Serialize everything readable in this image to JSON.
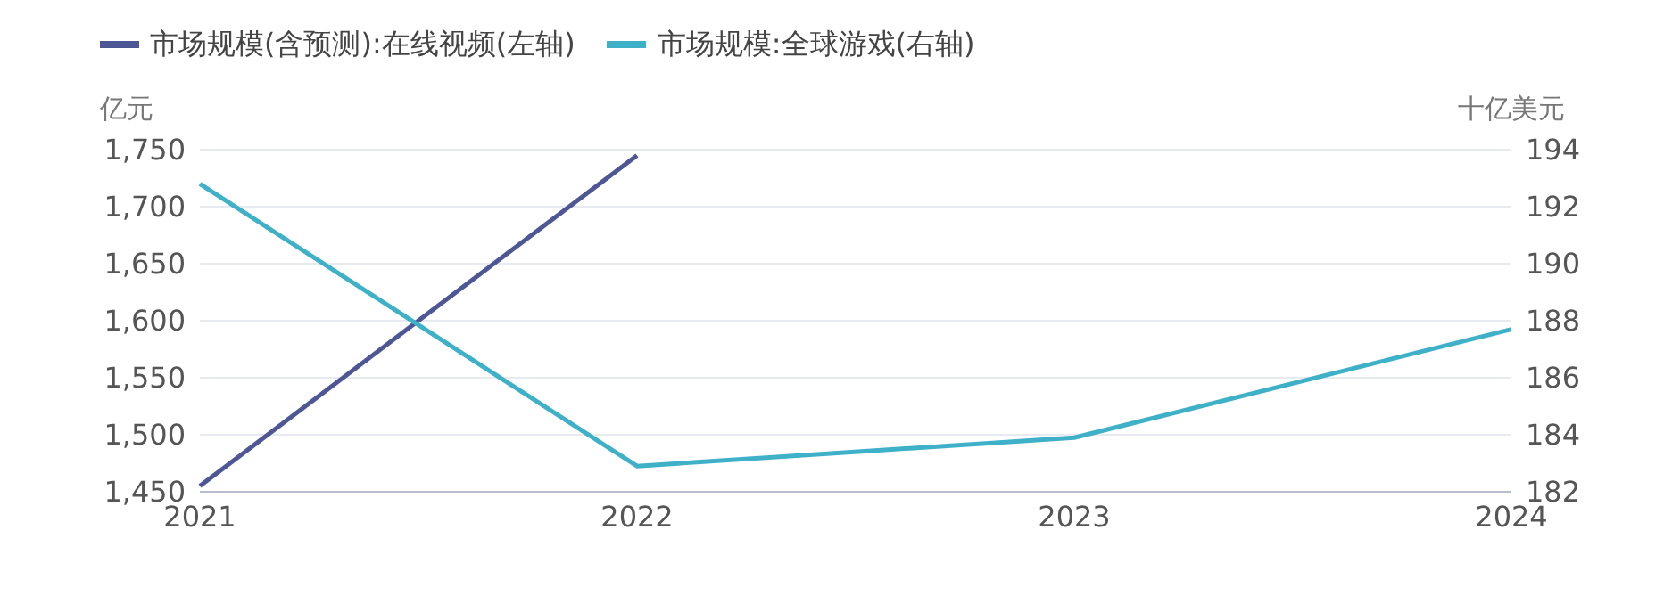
{
  "chart_data": {
    "type": "line",
    "categories": [
      "2021",
      "2022",
      "2023",
      "2024"
    ],
    "series": [
      {
        "name": "市场规模(含预测):在线视频(左轴)",
        "color": "#4e5796",
        "values": [
          1455,
          1745,
          null,
          null
        ]
      },
      {
        "name": "市场规模:全球游戏(右轴)",
        "color": "#3eb1c8",
        "axis": "y2",
        "values": [
          192.8,
          182.9,
          183.9,
          187.7
        ]
      }
    ],
    "ylabel": "亿元",
    "y2label": "十亿美元",
    "ylim": [
      1450,
      1750
    ],
    "yticks": [
      {
        "value": 1450,
        "label": "1,450"
      },
      {
        "value": 1500,
        "label": "1,500"
      },
      {
        "value": 1550,
        "label": "1,550"
      },
      {
        "value": 1600,
        "label": "1,600"
      },
      {
        "value": 1650,
        "label": "1,650"
      },
      {
        "value": 1700,
        "label": "1,700"
      },
      {
        "value": 1750,
        "label": "1,750"
      }
    ],
    "y2lim": [
      182,
      194
    ],
    "y2ticks": [
      182,
      184,
      186,
      188,
      190,
      192,
      194
    ],
    "grid": "y",
    "legend": "top left",
    "marker": "none",
    "line_style": "solid"
  }
}
